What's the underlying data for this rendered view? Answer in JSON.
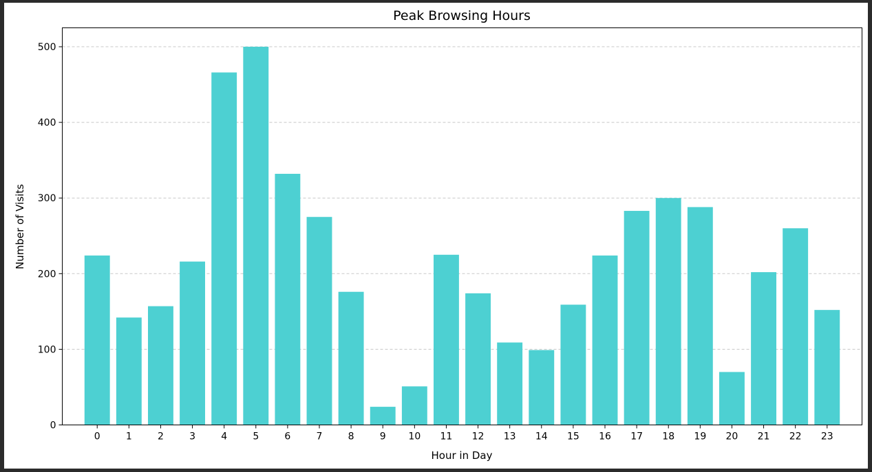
{
  "chart_data": {
    "type": "bar",
    "title": "Peak Browsing Hours",
    "xlabel": "Hour in Day",
    "ylabel": "Number of Visits",
    "categories": [
      "0",
      "1",
      "2",
      "3",
      "4",
      "5",
      "6",
      "7",
      "8",
      "9",
      "10",
      "11",
      "12",
      "13",
      "14",
      "15",
      "16",
      "17",
      "18",
      "19",
      "20",
      "21",
      "22",
      "23"
    ],
    "values": [
      224,
      142,
      157,
      216,
      466,
      500,
      332,
      275,
      176,
      24,
      51,
      225,
      174,
      109,
      99,
      159,
      224,
      283,
      300,
      288,
      70,
      202,
      260,
      152
    ],
    "ylim": [
      0,
      525
    ],
    "yticks": [
      0,
      100,
      200,
      300,
      400,
      500
    ],
    "grid": "y-dashed",
    "bar_color": "#4dd0d2"
  }
}
